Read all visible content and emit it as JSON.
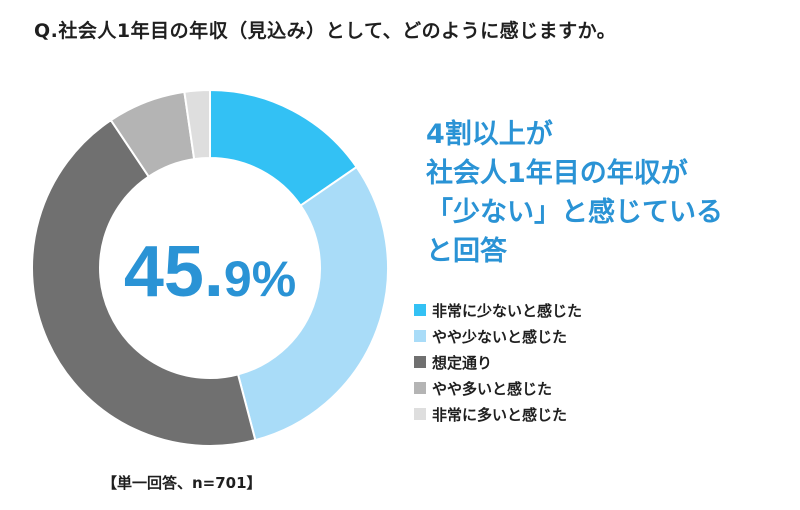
{
  "question": "Q.社会人1年目の年収（見込み）として、どのように感じますか。",
  "center_value": {
    "main": "45.",
    "sub": "9%"
  },
  "headline": [
    "4割以上が",
    "社会人1年目の年収が",
    "「少ない」と感じている",
    "と回答"
  ],
  "footnote": "【単一回答、n=701】",
  "colors": {
    "accent": "#2a93d5"
  },
  "chart_data": {
    "type": "pie",
    "donut": true,
    "categories": [
      "非常に少ないと感じた",
      "やや少ないと感じた",
      "想定通り",
      "やや多いと感じた",
      "非常に多いと感じた"
    ],
    "values": [
      15.4,
      30.5,
      44.7,
      7.1,
      2.3
    ],
    "colors": [
      "#33c1f4",
      "#a9dcf8",
      "#707070",
      "#b4b4b4",
      "#dedede"
    ],
    "start_angle_deg": 0,
    "legend_position": "right"
  }
}
